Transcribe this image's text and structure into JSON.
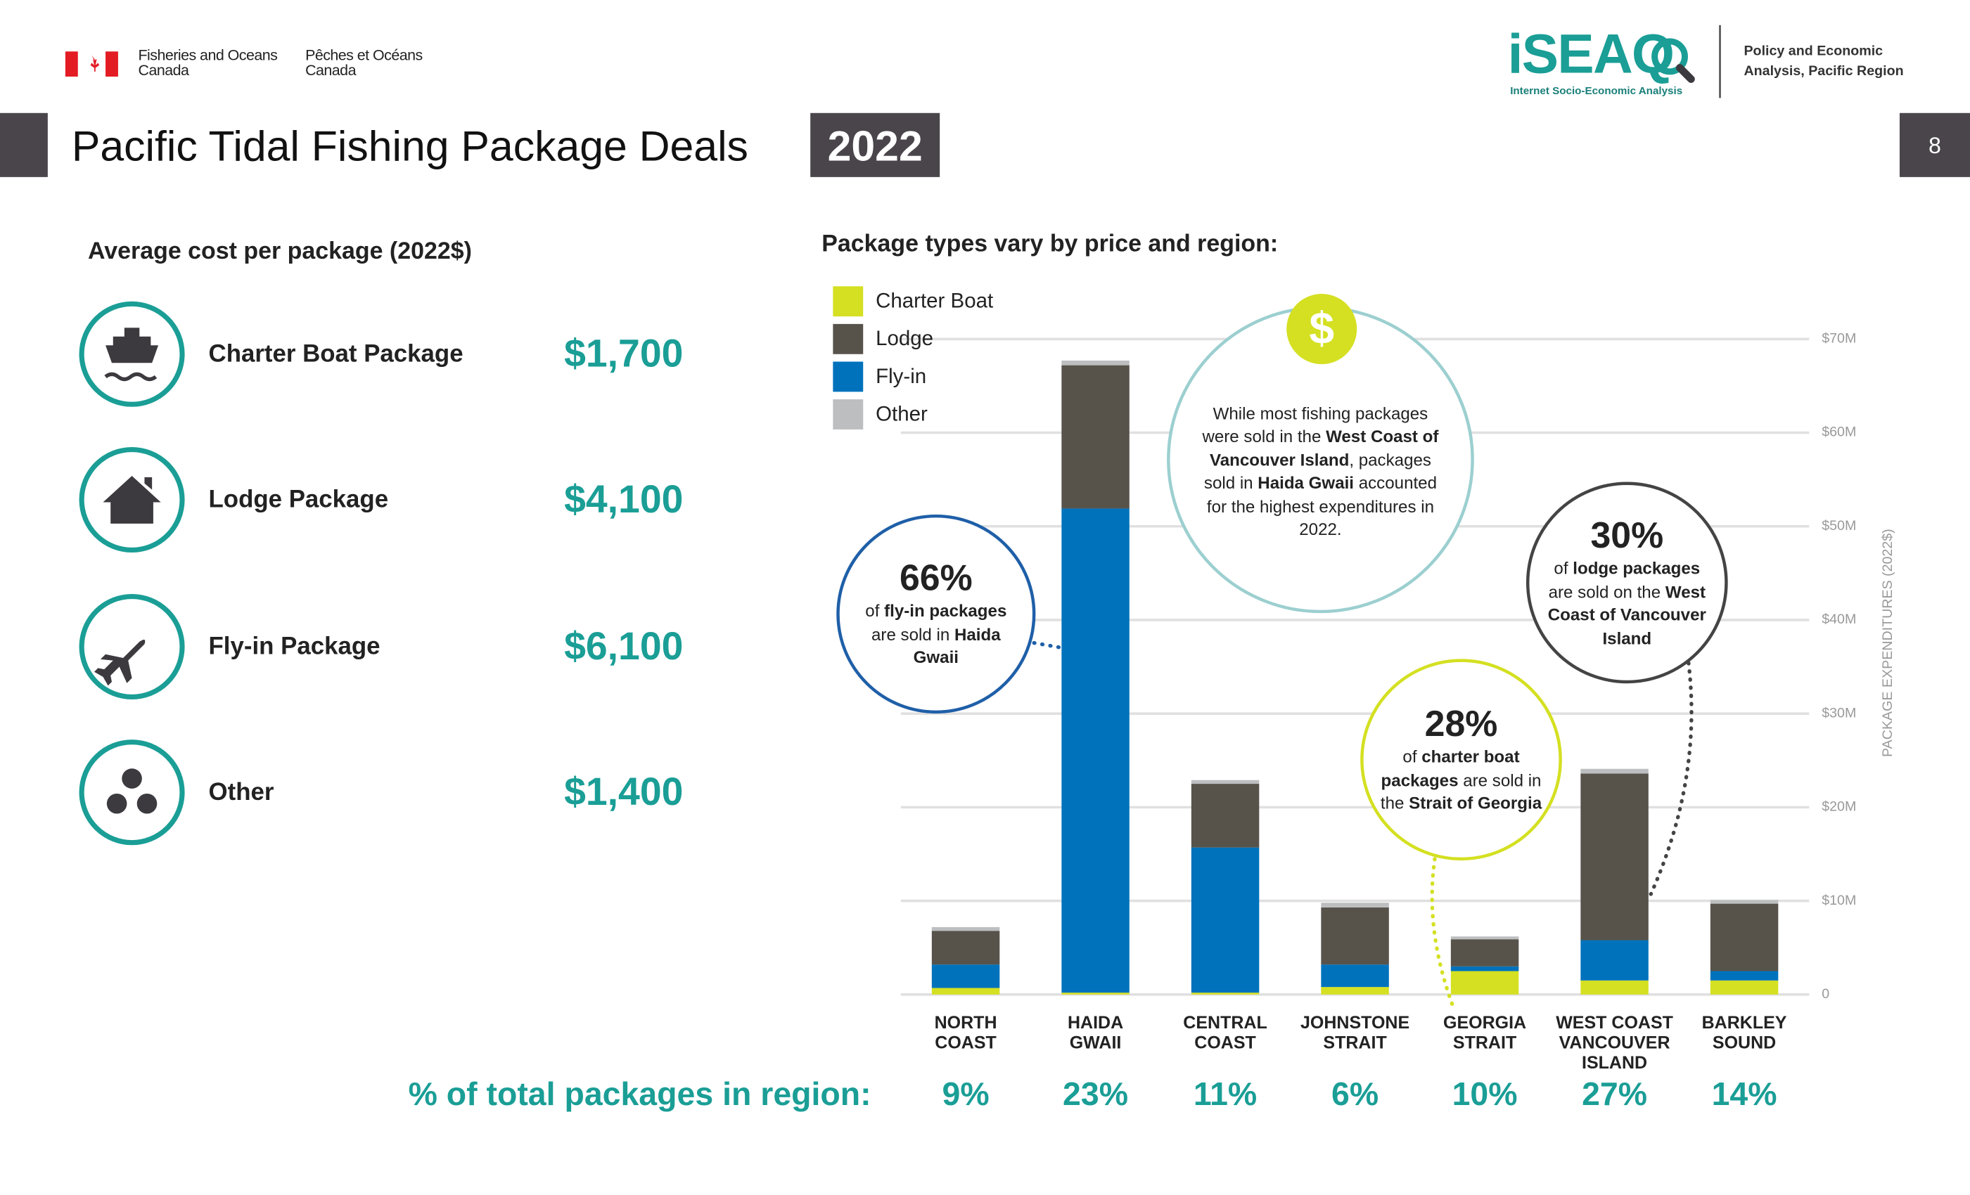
{
  "header": {
    "dept_en": [
      "Fisheries and Oceans",
      "Canada"
    ],
    "dept_fr": [
      "Pêches et Océans",
      "Canada"
    ],
    "logo": "iSEAQ",
    "logo_sub": "Internet Socio-Economic Analysis",
    "unit": [
      "Policy and Economic",
      "Analysis, Pacific Region"
    ],
    "title": "Pacific Tidal Fishing Package Deals",
    "year": "2022",
    "page": "8"
  },
  "costs": {
    "title": "Average cost per package (2022$)",
    "rows": [
      [
        "Charter Boat Package",
        "$1,700"
      ],
      [
        "Lodge Package",
        "$4,100"
      ],
      [
        "Fly-in Package",
        "$6,100"
      ],
      [
        "Other",
        "$1,400"
      ]
    ]
  },
  "chart_data": {
    "type": "stacked_bar",
    "title": "Package types vary by price and region:",
    "y_label": "PACKAGE EXPENDITURES (2022$)",
    "categories": [
      "NORTH\nCOAST",
      "HAIDA\nGWAII",
      "CENTRAL\nCOAST",
      "JOHNSTONE\nSTRAIT",
      "GEORGIA\nSTRAIT",
      "WEST COAST\nVANCOUVER\nISLAND",
      "BARKLEY\nSOUND"
    ],
    "series": [
      {
        "name": "Charter Boat",
        "color": "#d4e021",
        "values": [
          0.7,
          0.2,
          0.2,
          0.8,
          2.5,
          1.5,
          1.5
        ]
      },
      {
        "name": "Lodge",
        "color": "#57534b",
        "values": [
          3.6,
          15.3,
          6.8,
          6.1,
          2.9,
          17.8,
          7.2
        ]
      },
      {
        "name": "Fly-in",
        "color": "#0072bc",
        "values": [
          2.5,
          51.7,
          15.5,
          2.4,
          0.5,
          4.3,
          1.0
        ]
      },
      {
        "name": "Other",
        "color": "#bcbec0",
        "values": [
          0.4,
          0.5,
          0.4,
          0.5,
          0.3,
          0.5,
          0.4
        ]
      }
    ],
    "stack_order": [
      0,
      2,
      1,
      3
    ],
    "ylim": [
      0,
      70
    ],
    "yticks": [
      0,
      {
        "value": 10,
        "label": "$10M"
      },
      {
        "value": 20,
        "label": "$20M"
      },
      {
        "value": 30,
        "label": "$30M"
      },
      {
        "value": 40,
        "label": "$40M"
      },
      {
        "value": 50,
        "label": "$50M"
      },
      {
        "value": 60,
        "label": "$60M"
      },
      {
        "value": 70,
        "label": "$70M"
      }
    ],
    "grid": true
  },
  "region_share": {
    "label": "% of total packages in region:",
    "values": [
      "9%",
      "23%",
      "11%",
      "6%",
      "10%",
      "27%",
      "14%"
    ]
  },
  "annotations": [
    {
      "head": "66%",
      "body": [
        "of ",
        "fly-in packages",
        " are sold in ",
        "Haida Gwaii"
      ]
    },
    {
      "body": [
        "While most fishing packages were sold in the ",
        "West Coast of Vancouver Island",
        ", packages sold in ",
        "Haida Gwaii",
        " accounted for the highest expenditures in 2022."
      ]
    },
    {
      "head": "28%",
      "body": [
        "of ",
        "charter boat packages",
        " are sold in the ",
        "Strait of Georgia"
      ]
    },
    {
      "head": "30%",
      "body": [
        "of ",
        "lodge packages",
        " are sold on the ",
        "West Coast of Vancouver Island"
      ]
    }
  ]
}
